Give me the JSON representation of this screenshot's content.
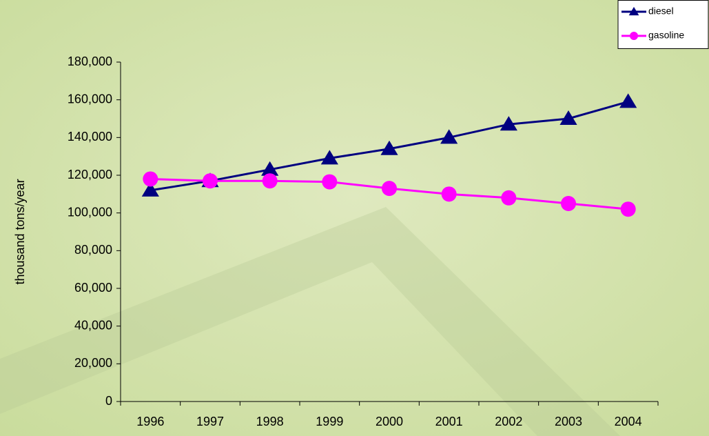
{
  "chart_data": {
    "type": "line",
    "y_label": "thousand tons/year",
    "categories": [
      "1996",
      "1997",
      "1998",
      "1999",
      "2000",
      "2001",
      "2002",
      "2003",
      "2004"
    ],
    "series": [
      {
        "name": "diesel",
        "color": "#000080",
        "marker": "triangle",
        "values": [
          112000,
          117000,
          123000,
          129000,
          134000,
          140000,
          147000,
          150000,
          159000
        ]
      },
      {
        "name": "gasoline",
        "color": "#ff00ff",
        "marker": "circle",
        "values": [
          118000,
          117000,
          117000,
          116500,
          113000,
          110000,
          108000,
          105000,
          102000
        ]
      }
    ],
    "ylim": [
      0,
      180000
    ],
    "yticks": [
      0,
      {
        "value": 20000,
        "label": "20,000"
      },
      {
        "value": 40000,
        "label": "40,000"
      },
      {
        "value": 60000,
        "label": "60,000"
      },
      {
        "value": 80000,
        "label": "80,000"
      },
      {
        "value": 100000,
        "label": "100,000"
      },
      {
        "value": 120000,
        "label": "120,000"
      },
      {
        "value": 140000,
        "label": "140,000"
      },
      {
        "value": 160000,
        "label": "160,000"
      },
      {
        "value": 180000,
        "label": "180,000"
      }
    ],
    "legend": "top-right"
  }
}
